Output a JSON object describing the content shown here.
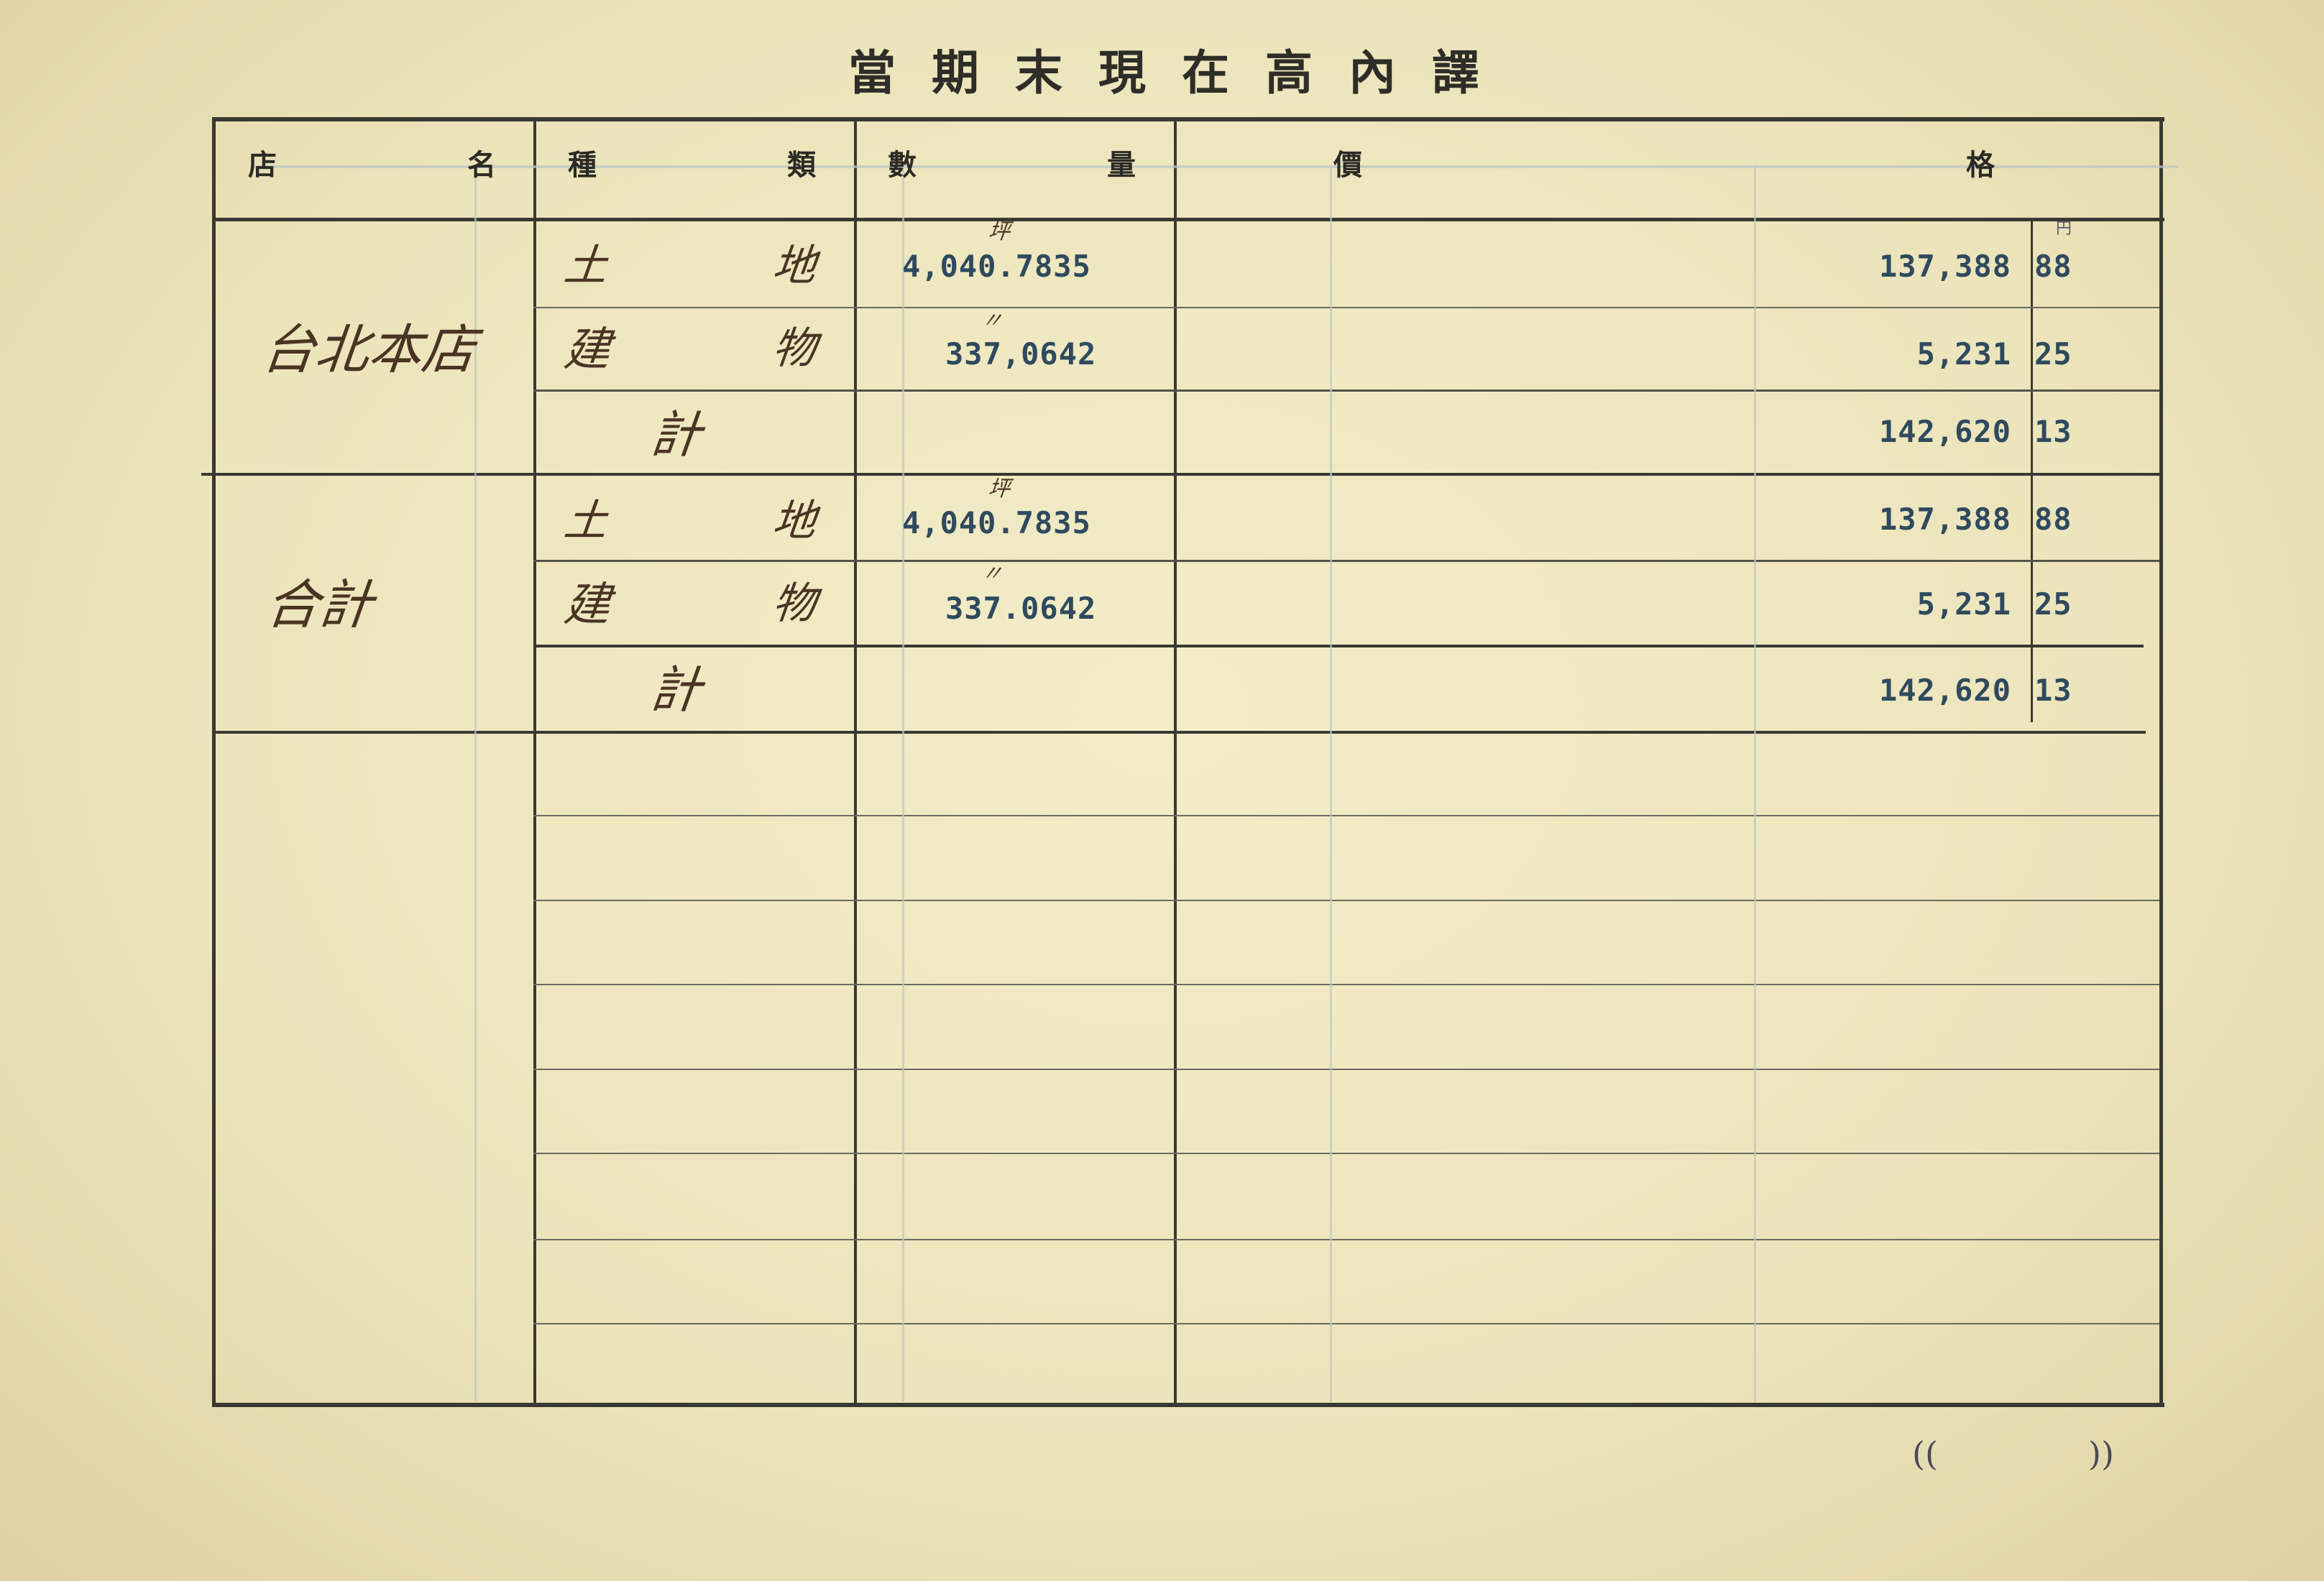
{
  "title": "當期末現在高內譯",
  "headers": {
    "store": [
      "店",
      "名"
    ],
    "type": [
      "種",
      "類"
    ],
    "quantity": [
      "數",
      "量"
    ],
    "price": [
      "價",
      "格"
    ]
  },
  "sections": [
    {
      "store": "台北本店",
      "rows": [
        {
          "type": [
            "土",
            "地"
          ],
          "unit": "坪",
          "quantity": "4,040.7835",
          "yen": "137,388",
          "sen": "88"
        },
        {
          "type": [
            "建",
            "物"
          ],
          "unit": "〃",
          "quantity": "337,0642",
          "yen": "5,231",
          "sen": "25"
        },
        {
          "type": [
            "計",
            ""
          ],
          "unit": "",
          "quantity": "",
          "yen": "142,620",
          "sen": "13"
        }
      ]
    },
    {
      "store": "合計",
      "rows": [
        {
          "type": [
            "土",
            "地"
          ],
          "unit": "坪",
          "quantity": "4,040.7835",
          "yen": "137,388",
          "sen": "88"
        },
        {
          "type": [
            "建",
            "物"
          ],
          "unit": "〃",
          "quantity": "337.0642",
          "yen": "5,231",
          "sen": "25"
        },
        {
          "type": [
            "計",
            ""
          ],
          "unit": "",
          "quantity": "",
          "yen": "142,620",
          "sen": "13"
        }
      ]
    }
  ],
  "currency_mark": "円",
  "footer": {
    "open": "((",
    "close": "))"
  }
}
